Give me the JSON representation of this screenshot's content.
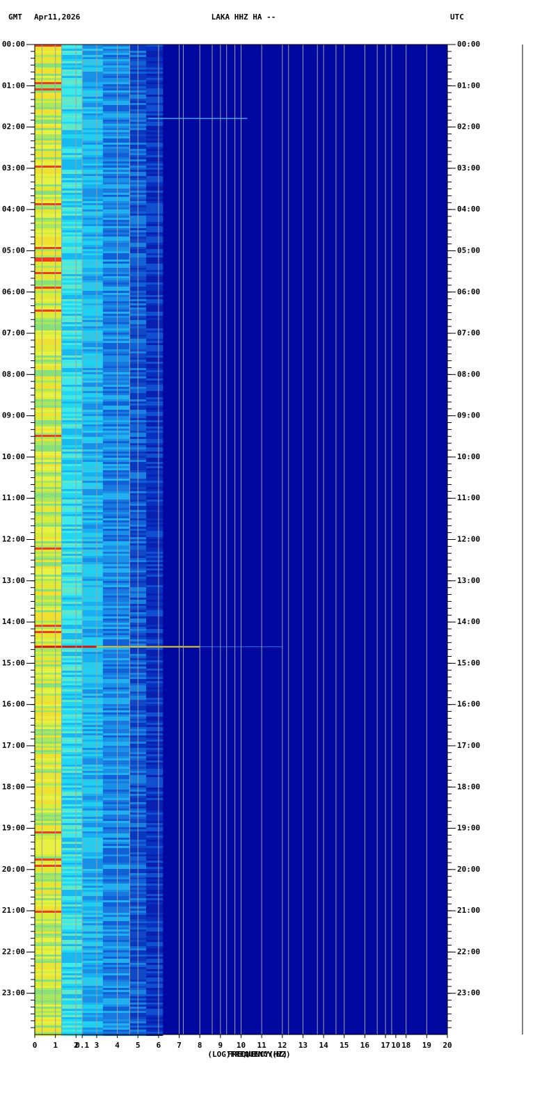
{
  "chart_data": {
    "type": "spectrogram",
    "header_left": "GMT",
    "date": "Apr11,2026",
    "title": "LAKA HHZ HA --",
    "header_right": "UTC",
    "xlabel": "FREQUENCY(HZ)",
    "xlabel_log": "(LOG)FREQUENCY(HZ)",
    "xlim": [
      0,
      20
    ],
    "xticks": [
      0,
      1,
      2,
      3,
      4,
      5,
      6,
      7,
      8,
      9,
      10,
      11,
      12,
      13,
      14,
      15,
      16,
      17,
      18,
      19,
      20
    ],
    "log_xticks": [
      {
        "value": 2.3,
        "label": "0.1"
      },
      {
        "value": 17.5,
        "label": "10"
      }
    ],
    "ylim": [
      0,
      24
    ],
    "yticks": [
      {
        "value": 0,
        "label": "00:00"
      },
      {
        "value": 1,
        "label": "01:00"
      },
      {
        "value": 2,
        "label": "02:00"
      },
      {
        "value": 3,
        "label": "03:00"
      },
      {
        "value": 4,
        "label": "04:00"
      },
      {
        "value": 5,
        "label": "05:00"
      },
      {
        "value": 6,
        "label": "06:00"
      },
      {
        "value": 7,
        "label": "07:00"
      },
      {
        "value": 8,
        "label": "08:00"
      },
      {
        "value": 9,
        "label": "09:00"
      },
      {
        "value": 10,
        "label": "10:00"
      },
      {
        "value": 11,
        "label": "11:00"
      },
      {
        "value": 12,
        "label": "12:00"
      },
      {
        "value": 13,
        "label": "13:00"
      },
      {
        "value": 14,
        "label": "14:00"
      },
      {
        "value": 15,
        "label": "15:00"
      },
      {
        "value": 16,
        "label": "16:00"
      },
      {
        "value": 17,
        "label": "17:00"
      },
      {
        "value": 18,
        "label": "18:00"
      },
      {
        "value": 19,
        "label": "19:00"
      },
      {
        "value": 20,
        "label": "20:00"
      },
      {
        "value": 21,
        "label": "21:00"
      },
      {
        "value": 22,
        "label": "22:00"
      },
      {
        "value": 23,
        "label": "23:00"
      }
    ]
  }
}
